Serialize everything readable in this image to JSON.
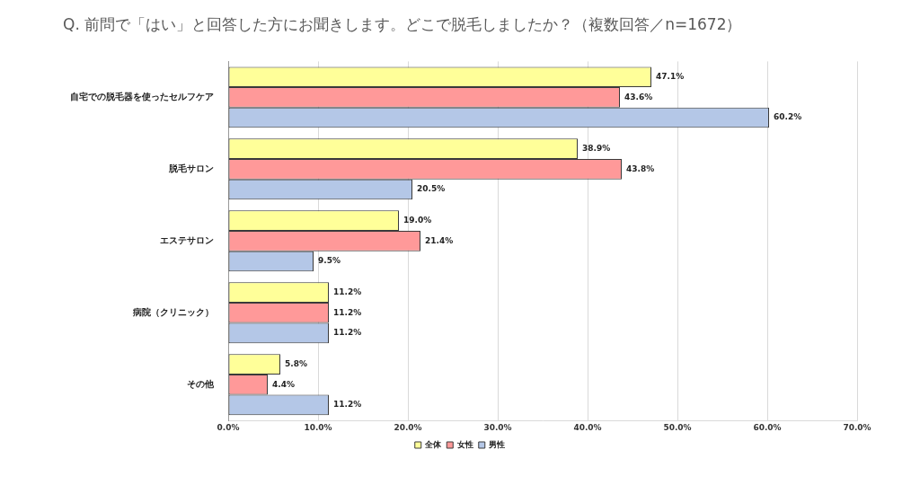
{
  "chart_data": {
    "type": "bar",
    "orientation": "horizontal",
    "title": "Q. 前問で「はい」と回答した方にお聞きします。どこで脱毛しましたか？（複数回答／n=1672）",
    "categories": [
      "自宅での脱毛器を使ったセルフケア",
      "脱毛サロン",
      "エステサロン",
      "病院（クリニック）",
      "その他"
    ],
    "series": [
      {
        "name": "全体",
        "color": "#ffff99",
        "values": [
          47.1,
          38.9,
          19.0,
          11.2,
          5.8
        ],
        "value_labels": [
          "47.1%",
          "38.9%",
          "19.0%",
          "11.2%",
          "5.8%"
        ]
      },
      {
        "name": "女性",
        "color": "#ff9999",
        "values": [
          43.6,
          43.8,
          21.4,
          11.2,
          4.4
        ],
        "value_labels": [
          "43.6%",
          "43.8%",
          "21.4%",
          "11.2%",
          "4.4%"
        ]
      },
      {
        "name": "男性",
        "color": "#b4c7e7",
        "values": [
          60.2,
          20.5,
          9.5,
          11.2,
          11.2
        ],
        "value_labels": [
          "60.2%",
          "20.5%",
          "9.5%",
          "11.2%",
          "11.2%"
        ]
      }
    ],
    "xlim": [
      0,
      70
    ],
    "xticks": [
      {
        "value": 0,
        "label": "0.0%"
      },
      {
        "value": 10,
        "label": "10.0%"
      },
      {
        "value": 20,
        "label": "20.0%"
      },
      {
        "value": 30,
        "label": "30.0%"
      },
      {
        "value": 40,
        "label": "40.0%"
      },
      {
        "value": 50,
        "label": "50.0%"
      },
      {
        "value": 60,
        "label": "60.0%"
      },
      {
        "value": 70,
        "label": "70.0%"
      }
    ],
    "grid": true,
    "legend": "bottom",
    "data_labels": true
  }
}
